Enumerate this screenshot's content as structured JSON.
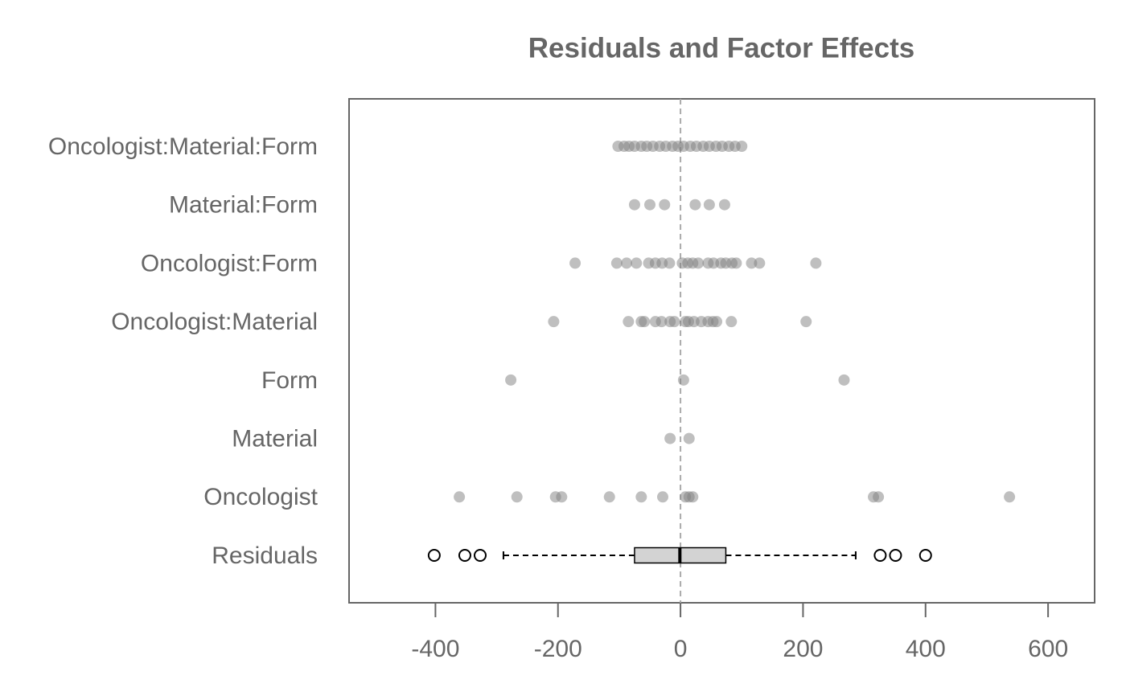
{
  "chart_data": {
    "type": "strip",
    "title": "Residuals and Factor Effects",
    "xlim": [
      -541,
      676
    ],
    "xticks": [
      -400,
      -200,
      0,
      200,
      400,
      600
    ],
    "refline": 0,
    "point_color": "#808080",
    "box_color": "#d3d3d3",
    "rows": [
      {
        "label": "Oncologist:Material:Form",
        "values": [
          -102,
          -92,
          -84,
          -75,
          -64,
          -55,
          -45,
          -34,
          -24,
          -13,
          -4,
          5,
          16,
          26,
          37,
          47,
          58,
          68,
          79,
          89,
          100
        ]
      },
      {
        "label": "Material:Form",
        "values": [
          -75,
          -50,
          -26,
          24,
          47,
          72
        ]
      },
      {
        "label": "Oncologist:Form",
        "values": [
          -172,
          -104,
          -88,
          -72,
          -52,
          -41,
          -30,
          -18,
          3,
          12,
          20,
          29,
          45,
          54,
          66,
          74,
          84,
          91,
          116,
          129,
          221
        ]
      },
      {
        "label": "Oncologist:Material",
        "values": [
          -207,
          -85,
          -64,
          -59,
          -41,
          -31,
          -17,
          -10,
          8,
          13,
          22,
          34,
          45,
          53,
          59,
          83,
          205
        ]
      },
      {
        "label": "Form",
        "values": [
          -277,
          5,
          267
        ]
      },
      {
        "label": "Material",
        "values": [
          -17,
          14
        ]
      },
      {
        "label": "Oncologist",
        "values": [
          -361,
          -267,
          -204,
          -194,
          -116,
          -64,
          -29,
          8,
          14,
          20,
          315,
          323,
          537
        ]
      },
      {
        "label": "Residuals",
        "box": {
          "whislo": -289,
          "q1": -75,
          "med": -1,
          "q3": 74,
          "whishi": 286,
          "fliers": [
            -402,
            -352,
            -327,
            326,
            351,
            400
          ]
        }
      }
    ]
  }
}
